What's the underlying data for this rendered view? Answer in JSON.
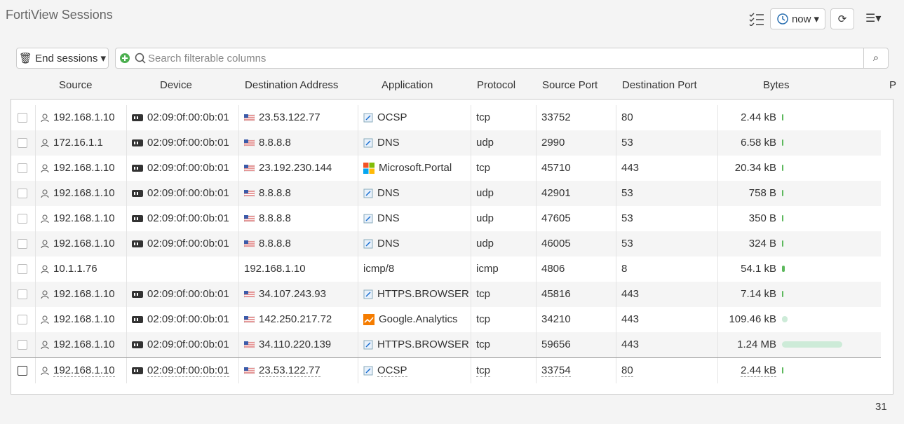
{
  "header": {
    "title": "FortiView Sessions",
    "time": "now"
  },
  "toolbar": {
    "end_sessions": "End sessions",
    "search_placeholder": "Search filterable columns"
  },
  "table": {
    "columns": [
      "Source",
      "Device",
      "Destination Address",
      "Application",
      "Protocol",
      "Source Port",
      "Destination Port",
      "Bytes",
      "P"
    ],
    "rows": [
      [
        "192.168.1.10",
        "02:09:0f:00:0b:01",
        "23.53.122.77",
        "OCSP",
        "tcp",
        "33752",
        "80",
        "2.44 kB"
      ],
      [
        "172.16.1.1",
        "02:09:0f:00:0b:01",
        "8.8.8.8",
        "DNS",
        "udp",
        "2990",
        "53",
        "6.58 kB"
      ],
      [
        "192.168.1.10",
        "02:09:0f:00:0b:01",
        "23.192.230.144",
        "Microsoft.Portal",
        "tcp",
        "45710",
        "443",
        "20.34 kB"
      ],
      [
        "192.168.1.10",
        "02:09:0f:00:0b:01",
        "8.8.8.8",
        "DNS",
        "udp",
        "42901",
        "53",
        "758 B"
      ],
      [
        "192.168.1.10",
        "02:09:0f:00:0b:01",
        "8.8.8.8",
        "DNS",
        "udp",
        "47605",
        "53",
        "350 B"
      ],
      [
        "192.168.1.10",
        "02:09:0f:00:0b:01",
        "8.8.8.8",
        "DNS",
        "udp",
        "46005",
        "53",
        "324 B"
      ],
      [
        "10.1.1.76",
        "",
        "192.168.1.10",
        "icmp/8",
        "icmp",
        "4806",
        "8",
        "54.1 kB"
      ],
      [
        "192.168.1.10",
        "02:09:0f:00:0b:01",
        "34.107.243.93",
        "HTTPS.BROWSER",
        "tcp",
        "45816",
        "443",
        "7.14 kB"
      ],
      [
        "192.168.1.10",
        "02:09:0f:00:0b:01",
        "142.250.217.72",
        "Google.Analytics",
        "tcp",
        "34210",
        "443",
        "109.46 kB"
      ],
      [
        "192.168.1.10",
        "02:09:0f:00:0b:01",
        "34.110.220.139",
        "HTTPS.BROWSER",
        "tcp",
        "59656",
        "443",
        "1.24 MB"
      ],
      [
        "192.168.1.10",
        "02:09:0f:00:0b:01",
        "23.53.122.77",
        "OCSP",
        "tcp",
        "33754",
        "80",
        "2.44 kB"
      ]
    ]
  },
  "footer": {
    "count": "31"
  }
}
